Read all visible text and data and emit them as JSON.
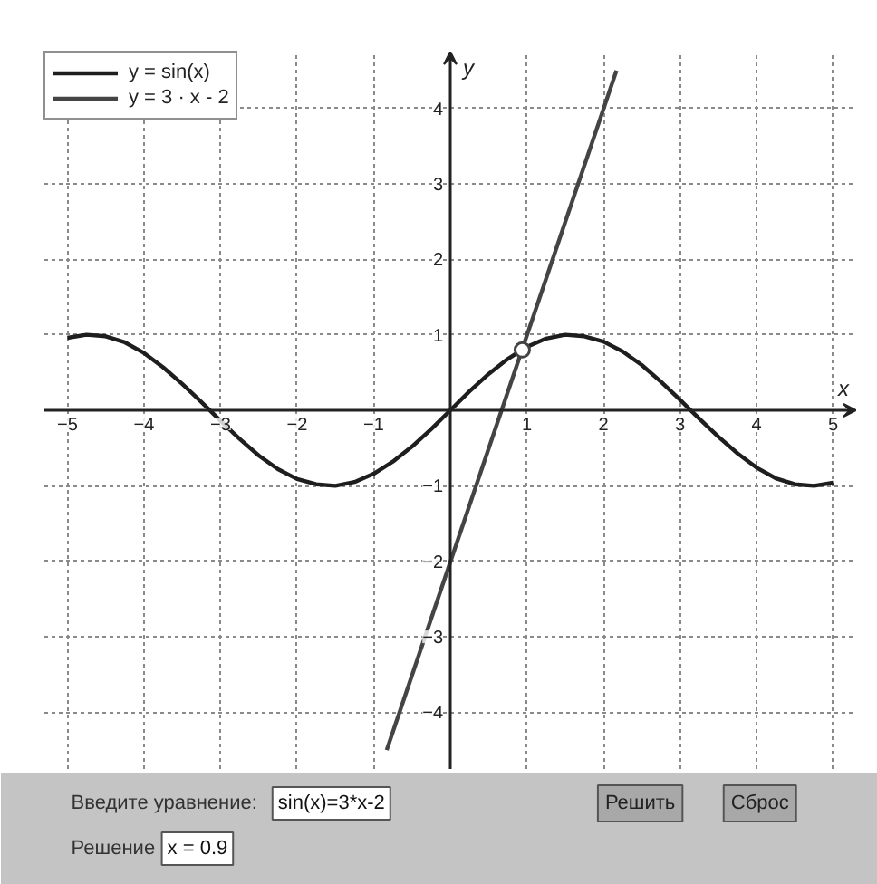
{
  "chart_data": {
    "type": "line",
    "xlabel": "x",
    "ylabel": "y",
    "xlim": [
      -5.3,
      5.3
    ],
    "ylim": [
      -4.75,
      4.75
    ],
    "xticks": [
      -5,
      -4,
      -3,
      -2,
      -1,
      1,
      2,
      3,
      4,
      5
    ],
    "yticks": [
      -4,
      -3,
      -2,
      -1,
      1,
      2,
      3,
      4
    ],
    "grid": true,
    "legend": "top left",
    "line_style": "solid",
    "series": [
      {
        "name": "y = sin(x)",
        "color": "#1e1e1e",
        "x": [
          -5,
          -4.75,
          -4.5,
          -4.25,
          -4,
          -3.75,
          -3.5,
          -3.25,
          -3,
          -2.75,
          -2.5,
          -2.25,
          -2,
          -1.75,
          -1.5,
          -1.25,
          -1,
          -0.75,
          -0.5,
          -0.25,
          0,
          0.25,
          0.5,
          0.75,
          1,
          1.25,
          1.5,
          1.75,
          2,
          2.25,
          2.5,
          2.75,
          3,
          3.25,
          3.5,
          3.75,
          4,
          4.25,
          4.5,
          4.75,
          5
        ],
        "values": [
          0.96,
          1.0,
          0.98,
          0.9,
          0.76,
          0.57,
          0.35,
          0.11,
          -0.14,
          -0.38,
          -0.6,
          -0.78,
          -0.91,
          -0.98,
          -1.0,
          -0.95,
          -0.84,
          -0.68,
          -0.48,
          -0.25,
          0,
          0.25,
          0.48,
          0.68,
          0.84,
          0.95,
          1.0,
          0.98,
          0.91,
          0.78,
          0.6,
          0.38,
          0.14,
          -0.11,
          -0.35,
          -0.57,
          -0.76,
          -0.9,
          -0.98,
          -1.0,
          -0.96
        ]
      },
      {
        "name": "y = 3 · x - 2",
        "color": "#444444",
        "x": [
          -0.83,
          2.17
        ],
        "values": [
          -4.5,
          4.5
        ]
      },
      {
        "type": "scatter",
        "marker": "circle",
        "color": "#444444",
        "x": [
          0.94
        ],
        "values": [
          0.8
        ]
      }
    ],
    "annotations": [
      "Введите уравнение:",
      "sin(x)=3*x-2",
      "Решить",
      "Сброс",
      "Решение",
      "x = 0.9"
    ]
  }
}
